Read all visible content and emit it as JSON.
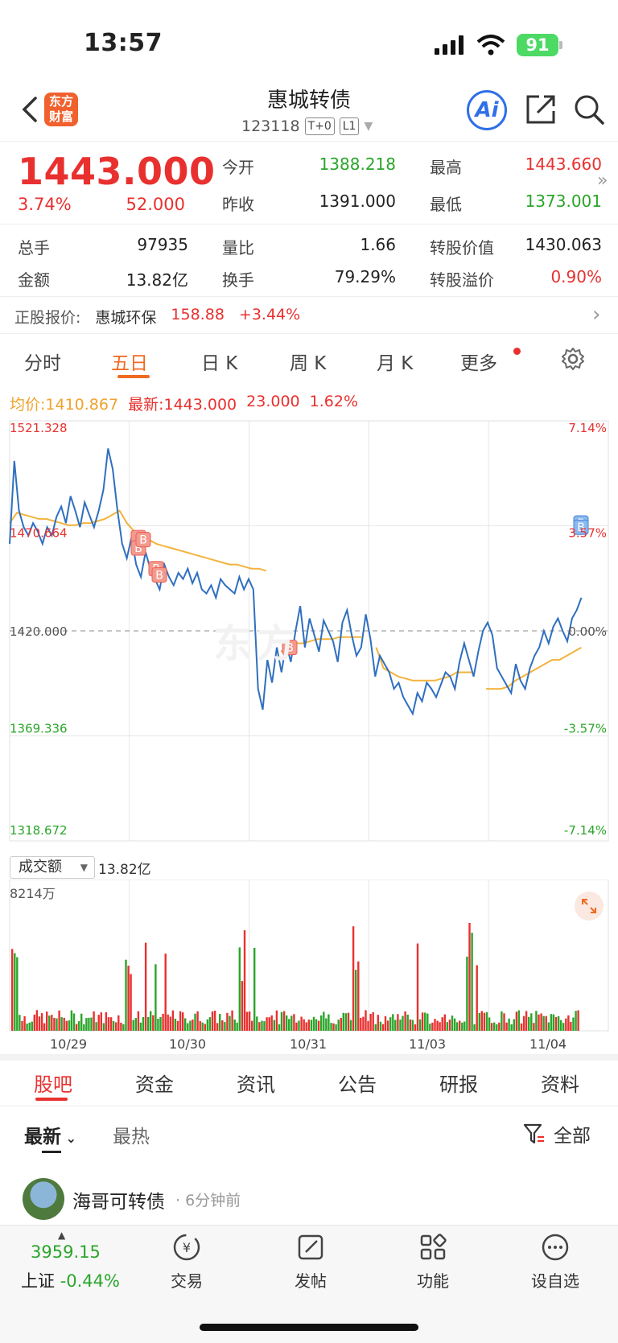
{
  "status_bar": {
    "time": "13:57",
    "battery": "91"
  },
  "header": {
    "logo": [
      "东方",
      "财富"
    ],
    "title": "惠城转债",
    "code": "123118",
    "tags": [
      "T+0",
      "L1"
    ],
    "ai": "Ai"
  },
  "quote": {
    "price": "1443.000",
    "change_pct": "3.74%",
    "change": "52.000",
    "rows": [
      {
        "l1": "今开",
        "v1": "1388.218",
        "c1": "green",
        "l2": "最高",
        "v2": "1443.660",
        "c2": "red"
      },
      {
        "l1": "昨收",
        "v1": "1391.000",
        "c1": "dark",
        "l2": "最低",
        "v2": "1373.001",
        "c2": "green"
      }
    ],
    "stats": [
      {
        "l1": "总手",
        "v1": "97935",
        "c1": "dark",
        "l2": "量比",
        "v2": "1.66",
        "c2": "dark",
        "l3": "转股价值",
        "v3": "1430.063",
        "c3": "dark"
      },
      {
        "l1": "金额",
        "v1": "13.82亿",
        "c1": "dark",
        "l2": "换手",
        "v2": "79.29%",
        "c2": "dark",
        "l3": "转股溢价",
        "v3": "0.90%",
        "c3": "red"
      }
    ]
  },
  "underlying": {
    "label": "正股报价:",
    "name": "惠城环保",
    "price": "158.88",
    "pct": "+3.44%"
  },
  "chart_tabs": [
    "分时",
    "五日",
    "日 K",
    "周 K",
    "月 K",
    "更多"
  ],
  "avg_line": {
    "avg_label": "均价:",
    "avg": "1410.867",
    "last_label": "最新:",
    "last": "1443.000",
    "chg": "23.000",
    "pct": "1.62%"
  },
  "chart_data": {
    "type": "line",
    "x_labels": [
      "10/29",
      "10/30",
      "10/31",
      "11/03",
      "11/04"
    ],
    "y_left_ticks": [
      "1521.328",
      "1470.664",
      "1420.000",
      "1369.336",
      "1318.672"
    ],
    "y_right_ticks": [
      "7.14%",
      "3.57%",
      "0.00%",
      "-3.57%",
      "-7.14%"
    ],
    "ylim": [
      1318.672,
      1521.328
    ],
    "reference": 1420.0,
    "series": [
      {
        "values": [
          1462,
          1502,
          1478,
          1470,
          1466,
          1472,
          1468,
          1462,
          1470,
          1466,
          1475,
          1480,
          1472,
          1485,
          1478,
          1470,
          1482,
          1476,
          1470,
          1478,
          1488,
          1508,
          1498,
          1478,
          1462,
          1455,
          1465,
          1452,
          1446,
          1458,
          1450,
          1445,
          1440,
          1452,
          1446,
          1442,
          1448,
          1445,
          1450,
          1443,
          1448,
          1440,
          1438,
          1442,
          1436,
          1445,
          1442,
          1440,
          1438,
          1446,
          1440,
          1445,
          1440,
          1392,
          1382,
          1406,
          1395,
          1412,
          1400,
          1414,
          1405,
          1420,
          1432,
          1412,
          1426,
          1418,
          1410,
          1425,
          1420,
          1415,
          1405,
          1424,
          1430,
          1418,
          1408,
          1412,
          1428,
          1416,
          1398,
          1408,
          1404,
          1400,
          1392,
          1395,
          1388,
          1384,
          1380,
          1390,
          1386,
          1395,
          1392,
          1388,
          1394,
          1400,
          1398,
          1392,
          1405,
          1414,
          1406,
          1398,
          1410,
          1420,
          1424,
          1418,
          1402,
          1398,
          1394,
          1390,
          1404,
          1396,
          1392,
          1402,
          1408,
          1412,
          1420,
          1414,
          1422,
          1426,
          1420,
          1415,
          1426,
          1430,
          1436
        ],
        "avg": [
          1472,
          1477,
          1476,
          1475,
          1474,
          1474,
          1473,
          1472,
          1471,
          1471,
          1472,
          1472,
          1473,
          1474,
          1476,
          1478,
          1472,
          1468,
          1466,
          1464,
          1462,
          1461,
          1460,
          1459,
          1458,
          1457,
          1456,
          1455,
          1454,
          1453,
          1452,
          1452,
          1451,
          1450,
          1450,
          1449,
          null,
          1410,
          1412,
          1414,
          1414,
          1415,
          1416,
          1416,
          1416,
          1417,
          1417,
          1417,
          1417,
          null,
          1412,
          1402,
          1400,
          1398,
          1397,
          1396,
          1396,
          1396,
          1396,
          1397,
          1398,
          1400,
          1400,
          1400,
          null,
          1392,
          1392,
          1392,
          1393,
          1396,
          1398,
          1400,
          1402,
          1404,
          1406,
          1406,
          1408,
          1410,
          1412
        ]
      }
    ],
    "trade_markers": [
      "B",
      "B",
      "B",
      "B",
      "B",
      "B",
      "B",
      "B"
    ]
  },
  "volume": {
    "selector": "成交额",
    "total": "13.82亿",
    "max_label": "8214万"
  },
  "section_tabs": [
    "股吧",
    "资金",
    "资讯",
    "公告",
    "研报",
    "资料"
  ],
  "sub_tabs": {
    "latest": "最新",
    "hot": "最热",
    "filter": "全部"
  },
  "post": {
    "user": "海哥可转债",
    "time": "· 6分钟前"
  },
  "bottom_bar": {
    "index_value": "3959.15",
    "index_name": "上证",
    "index_pct": "-0.44%",
    "nav": [
      "交易",
      "发帖",
      "功能",
      "设自选"
    ]
  }
}
